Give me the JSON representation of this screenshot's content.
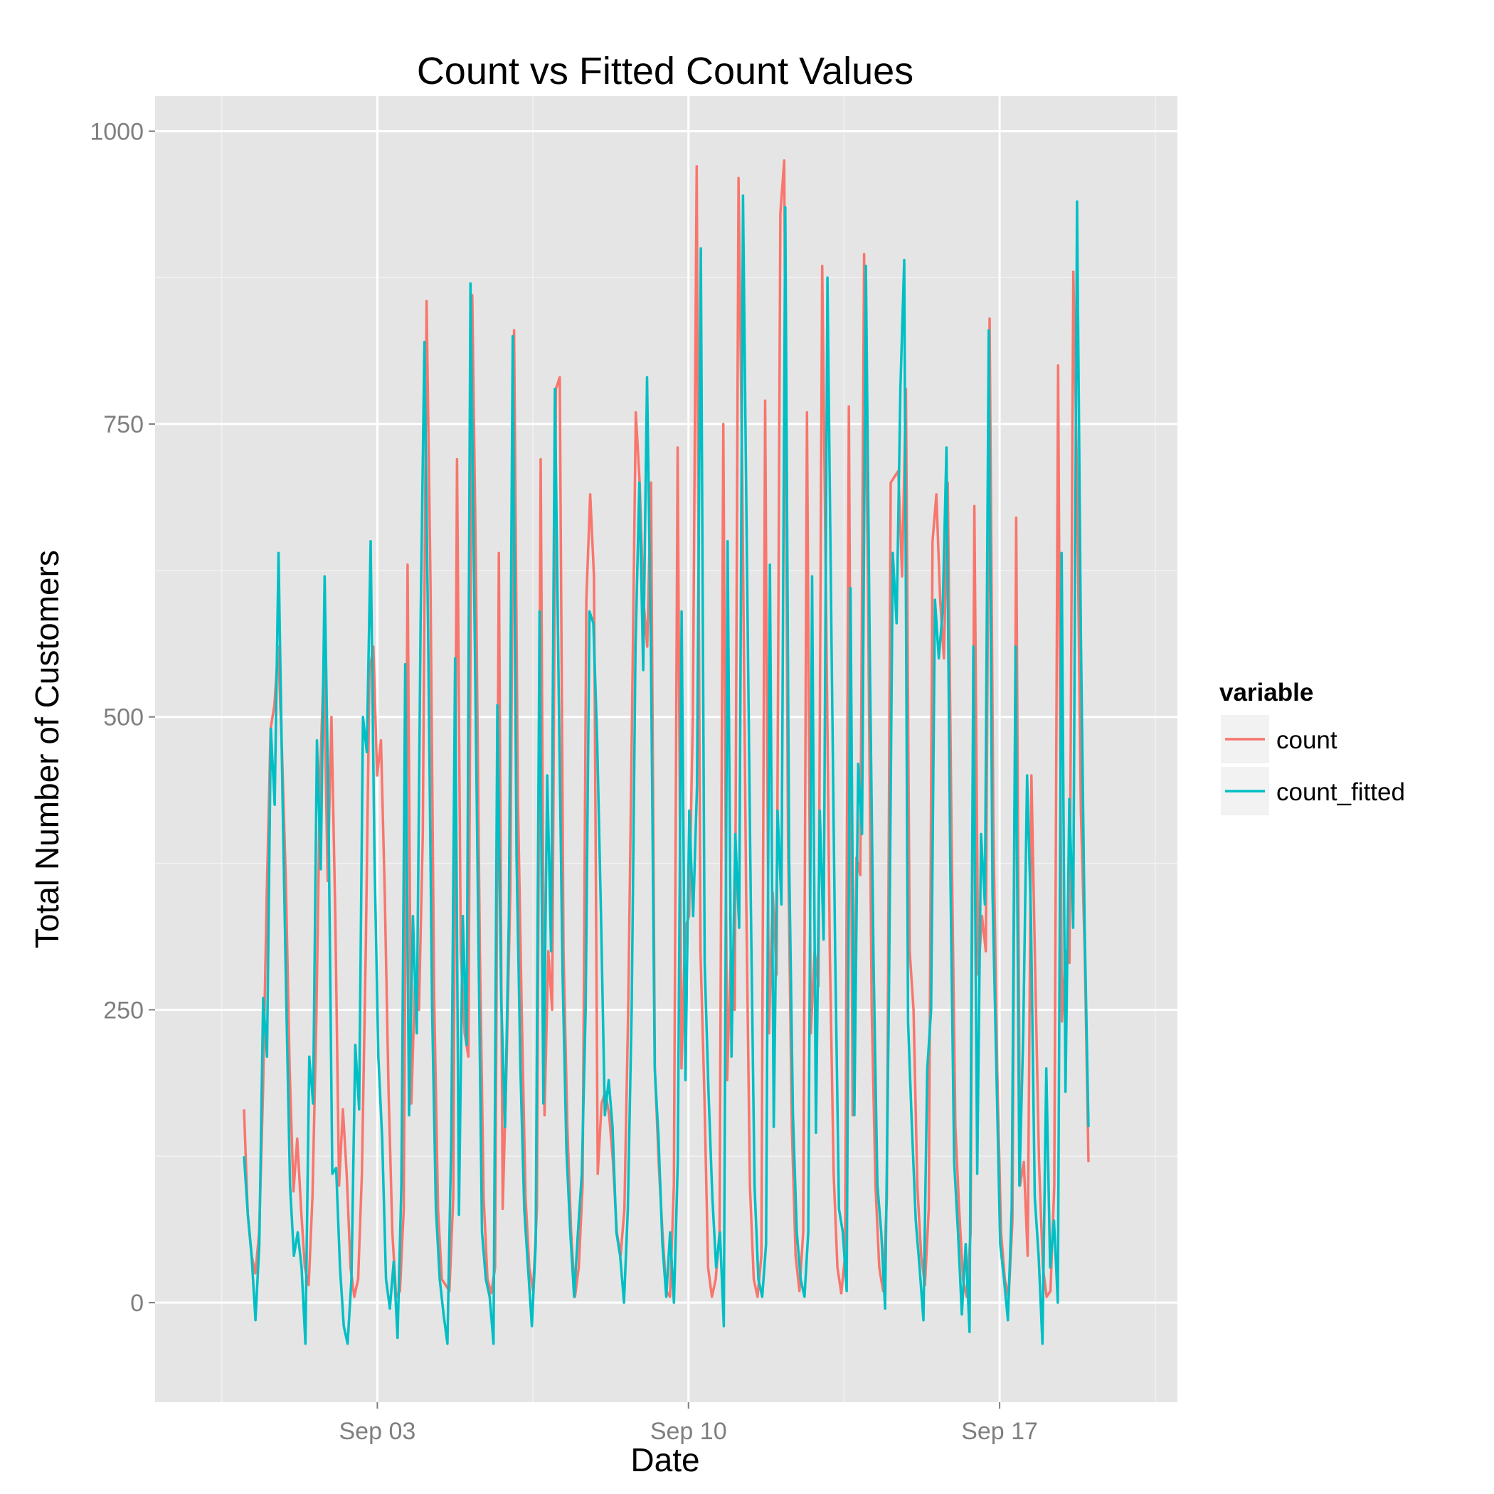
{
  "chart_data": {
    "type": "line",
    "title": "Count vs Fitted Count Values",
    "xlabel": "Date",
    "ylabel": "Total Number of Customers",
    "x_unit": "date (Sep 2012, daily with intra-day samples)",
    "x_start": "2012-08-31",
    "x_end": "2012-09-19",
    "xlim": [
      "2012-08-29",
      "2012-09-21"
    ],
    "ylim": [
      -85,
      1030
    ],
    "x_ticks": [
      {
        "label": "Sep 03",
        "value": "2012-09-03"
      },
      {
        "label": "Sep 10",
        "value": "2012-09-10"
      },
      {
        "label": "Sep 17",
        "value": "2012-09-17"
      }
    ],
    "y_ticks": [
      {
        "label": "0",
        "value": 0
      },
      {
        "label": "250",
        "value": 250
      },
      {
        "label": "500",
        "value": 500
      },
      {
        "label": "750",
        "value": 750
      },
      {
        "label": "1000",
        "value": 1000
      }
    ],
    "grid": true,
    "legend": {
      "title": "variable",
      "position": "right"
    },
    "series": [
      {
        "name": "count",
        "color": "#F8766D",
        "values": [
          165,
          75,
          40,
          25,
          60,
          180,
          350,
          490,
          510,
          560,
          470,
          360,
          200,
          95,
          140,
          80,
          30,
          15,
          90,
          240,
          450,
          545,
          360,
          500,
          330,
          100,
          165,
          110,
          30,
          5,
          20,
          110,
          300,
          540,
          560,
          450,
          480,
          350,
          180,
          60,
          5,
          10,
          80,
          630,
          170,
          280,
          250,
          400,
          855,
          620,
          260,
          80,
          20,
          15,
          10,
          90,
          720,
          300,
          230,
          210,
          860,
          620,
          300,
          90,
          20,
          8,
          30,
          640,
          80,
          200,
          350,
          830,
          430,
          250,
          90,
          30,
          10,
          80,
          720,
          160,
          300,
          250,
          780,
          790,
          300,
          150,
          60,
          5,
          30,
          100,
          600,
          690,
          620,
          110,
          170,
          180,
          160,
          120,
          60,
          40,
          80,
          250,
          500,
          760,
          700,
          600,
          560,
          700,
          200,
          120,
          60,
          10,
          5,
          100,
          730,
          200,
          320,
          330,
          500,
          970,
          300,
          180,
          30,
          5,
          20,
          60,
          750,
          190,
          300,
          250,
          960,
          700,
          350,
          100,
          20,
          5,
          40,
          770,
          230,
          350,
          280,
          930,
          975,
          400,
          150,
          40,
          10,
          60,
          760,
          230,
          300,
          270,
          885,
          600,
          300,
          110,
          30,
          8,
          40,
          765,
          160,
          380,
          365,
          895,
          620,
          250,
          100,
          30,
          10,
          90,
          700,
          705,
          710,
          620,
          780,
          300,
          250,
          100,
          40,
          15,
          80,
          650,
          690,
          600,
          550,
          700,
          400,
          150,
          80,
          20,
          5,
          60,
          680,
          280,
          330,
          300,
          840,
          400,
          200,
          60,
          20,
          5,
          70,
          670,
          100,
          120,
          40,
          450,
          280,
          120,
          30,
          5,
          10,
          100,
          800,
          240,
          300,
          290,
          880,
          700,
          420,
          300,
          120
        ]
      },
      {
        "name": "count_fitted",
        "color": "#00BFC4",
        "values": [
          125,
          75,
          40,
          -15,
          50,
          260,
          210,
          490,
          425,
          640,
          440,
          260,
          100,
          40,
          60,
          30,
          -35,
          210,
          170,
          480,
          370,
          620,
          420,
          110,
          115,
          30,
          -20,
          -35,
          20,
          220,
          165,
          500,
          470,
          650,
          380,
          210,
          140,
          20,
          -5,
          35,
          -30,
          100,
          545,
          160,
          330,
          230,
          580,
          820,
          560,
          250,
          80,
          20,
          -10,
          -35,
          140,
          550,
          75,
          330,
          220,
          870,
          600,
          330,
          60,
          20,
          5,
          -35,
          510,
          260,
          150,
          330,
          825,
          380,
          200,
          80,
          30,
          -20,
          50,
          590,
          170,
          450,
          300,
          780,
          520,
          280,
          130,
          60,
          5,
          60,
          110,
          250,
          590,
          580,
          480,
          330,
          160,
          190,
          150,
          60,
          40,
          0,
          80,
          250,
          560,
          700,
          540,
          790,
          560,
          200,
          140,
          50,
          5,
          60,
          0,
          120,
          590,
          190,
          420,
          330,
          440,
          900,
          290,
          180,
          90,
          30,
          60,
          -20,
          650,
          210,
          400,
          320,
          945,
          640,
          350,
          100,
          20,
          5,
          50,
          630,
          150,
          420,
          340,
          935,
          380,
          160,
          60,
          20,
          5,
          60,
          620,
          145,
          420,
          310,
          875,
          580,
          300,
          80,
          60,
          10,
          610,
          160,
          460,
          400,
          885,
          560,
          290,
          100,
          60,
          -5,
          260,
          640,
          580,
          780,
          890,
          240,
          150,
          70,
          30,
          -15,
          200,
          250,
          600,
          550,
          590,
          730,
          370,
          120,
          60,
          -10,
          50,
          -25,
          560,
          110,
          400,
          340,
          830,
          350,
          200,
          50,
          20,
          -15,
          80,
          560,
          100,
          230,
          450,
          330,
          90,
          40,
          -35,
          200,
          30,
          70,
          0,
          640,
          180,
          430,
          320,
          940,
          570,
          320,
          150
        ]
      }
    ]
  }
}
